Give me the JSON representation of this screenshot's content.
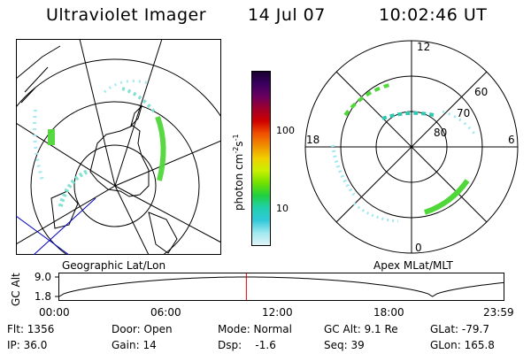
{
  "header": {
    "title": "Ultraviolet Imager",
    "date": "14 Jul 07",
    "time": "10:02:46 UT"
  },
  "colorbar": {
    "unit_label": "photon cm",
    "unit_exp1": "-2",
    "unit_mid": "s",
    "unit_exp2": "-1",
    "tick_100": "100",
    "tick_10": "10",
    "colors": [
      "#1a0030",
      "#3a0060",
      "#6a0060",
      "#a0002a",
      "#d00000",
      "#f05000",
      "#f09000",
      "#f0d000",
      "#c8f000",
      "#70e000",
      "#20d040",
      "#20d0b0",
      "#30c8d8",
      "#a0e8f0",
      "#e0f4f8"
    ]
  },
  "left_panel": {
    "label": "Geographic Lat/Lon"
  },
  "right_panel": {
    "label": "Apex MLat/MLT",
    "mlt_labels": [
      "12",
      "18",
      "6",
      "0"
    ],
    "lat_labels": [
      "60",
      "70",
      "80"
    ]
  },
  "altitude_strip": {
    "axis_label": "GC Alt",
    "y_ticks": [
      "9.0",
      "1.8"
    ],
    "x_ticks": [
      "00:00",
      "06:00",
      "12:00",
      "18:00",
      "23:59"
    ],
    "current_time_frac": 0.421
  },
  "status": {
    "flt": "Flt: 1356",
    "ip": "IP: 36.0",
    "door": "Door: Open",
    "gain": "Gain: 14",
    "mode": "Mode: Normal",
    "dsp": "Dsp:    -1.6",
    "gcalt": "GC Alt: 9.1 Re",
    "seq": "Seq: 39",
    "glat": "GLat: -79.7",
    "glon": "GLon: 165.8"
  }
}
